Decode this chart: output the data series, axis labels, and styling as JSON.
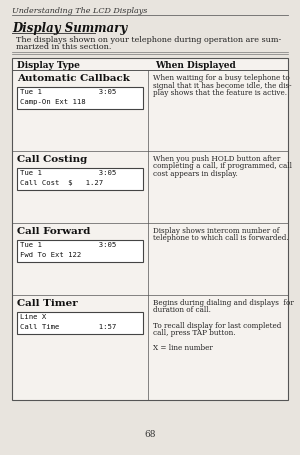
{
  "bg_color": "#e8e4de",
  "header_italic": "Understanding The LCD Displays",
  "title": "Display Summary",
  "intro_line1": "The displays shown on your telephone during operation are sum-",
  "intro_line2": "marized in this section.",
  "table_header_left": "Display Type",
  "table_header_right": "When Displayed",
  "sections": [
    {
      "title": "Automatic Callback",
      "display_lines": [
        "Tue 1             3:05",
        "Camp-On Ext 118"
      ],
      "description": [
        "When waiting for a busy telephone to",
        "signal that it has become idle, the dis-",
        "play shows that the feature is active."
      ]
    },
    {
      "title": "Call Costing",
      "display_lines": [
        "Tue 1             3:05",
        "Call Cost  $   1.27"
      ],
      "description": [
        "When you push HOLD button after",
        "completing a call, if programmed, call",
        "cost appears in display."
      ]
    },
    {
      "title": "Call Forward",
      "display_lines": [
        "Tue 1             3:05",
        "Fwd To Ext 122"
      ],
      "description": [
        "Display shows intercom number of",
        "telephone to which call is forwarded."
      ]
    },
    {
      "title": "Call Timer",
      "display_lines": [
        "Line X",
        "Call Time         1:57"
      ],
      "description": [
        "Begins during dialing and displays  for",
        "duration of call.",
        "",
        "To recall display for last completed",
        "call, press TAP button.",
        "",
        "X = line number"
      ]
    }
  ],
  "page_number": "68"
}
